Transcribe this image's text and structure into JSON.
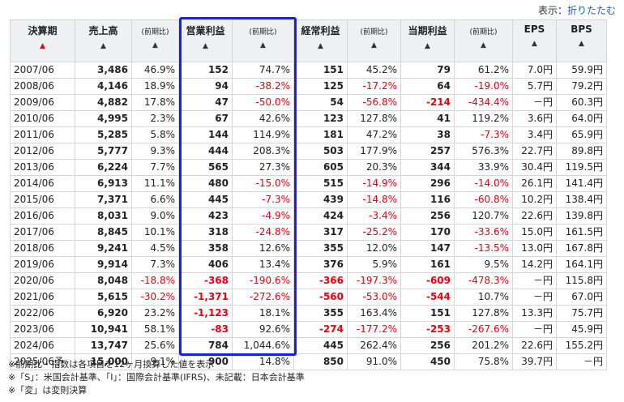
{
  "toolbar": {
    "display_label": "表示：",
    "toggle_link": "折りたたむ"
  },
  "headers": [
    {
      "label": "決算期",
      "arrow": "▲",
      "active": true
    },
    {
      "label": "売上高",
      "arrow": "▲"
    },
    {
      "label": "(前期比)",
      "arrow": "▲",
      "sub": true
    },
    {
      "label": "営業利益",
      "arrow": "▲"
    },
    {
      "label": "(前期比)",
      "arrow": "▲",
      "sub": true
    },
    {
      "label": "経常利益",
      "arrow": "▲"
    },
    {
      "label": "(前期比)",
      "arrow": "▲",
      "sub": true
    },
    {
      "label": "当期利益",
      "arrow": "▲"
    },
    {
      "label": "(前期比)",
      "arrow": "▲",
      "sub": true
    },
    {
      "label": "EPS",
      "arrow": "▲"
    },
    {
      "label": "BPS",
      "arrow": "▲"
    }
  ],
  "rows": [
    [
      "2007/06",
      "3,486",
      "46.9%",
      "152",
      "74.7%",
      "151",
      "45.2%",
      "79",
      "61.2%",
      "7.0円",
      "59.9円"
    ],
    [
      "2008/06",
      "4,146",
      "18.9%",
      "94",
      "-38.2%",
      "125",
      "-17.2%",
      "64",
      "-19.0%",
      "5.7円",
      "79.2円"
    ],
    [
      "2009/06",
      "4,882",
      "17.8%",
      "47",
      "-50.0%",
      "54",
      "-56.8%",
      "-214",
      "-434.4%",
      "－円",
      "60.3円"
    ],
    [
      "2010/06",
      "4,995",
      "2.3%",
      "67",
      "42.6%",
      "123",
      "127.8%",
      "41",
      "119.2%",
      "3.6円",
      "64.0円"
    ],
    [
      "2011/06",
      "5,285",
      "5.8%",
      "144",
      "114.9%",
      "181",
      "47.2%",
      "38",
      "-7.3%",
      "3.4円",
      "65.9円"
    ],
    [
      "2012/06",
      "5,777",
      "9.3%",
      "444",
      "208.3%",
      "503",
      "177.9%",
      "257",
      "576.3%",
      "22.7円",
      "89.8円"
    ],
    [
      "2013/06",
      "6,224",
      "7.7%",
      "565",
      "27.3%",
      "605",
      "20.3%",
      "344",
      "33.9%",
      "30.4円",
      "119.5円"
    ],
    [
      "2014/06",
      "6,913",
      "11.1%",
      "480",
      "-15.0%",
      "515",
      "-14.9%",
      "296",
      "-14.0%",
      "26.1円",
      "141.4円"
    ],
    [
      "2015/06",
      "7,371",
      "6.6%",
      "445",
      "-7.3%",
      "439",
      "-14.8%",
      "116",
      "-60.8%",
      "10.2円",
      "138.4円"
    ],
    [
      "2016/06",
      "8,031",
      "9.0%",
      "423",
      "-4.9%",
      "424",
      "-3.4%",
      "256",
      "120.7%",
      "22.6円",
      "139.8円"
    ],
    [
      "2017/06",
      "8,845",
      "10.1%",
      "318",
      "-24.8%",
      "317",
      "-25.2%",
      "170",
      "-33.6%",
      "15.0円",
      "161.5円"
    ],
    [
      "2018/06",
      "9,241",
      "4.5%",
      "358",
      "12.6%",
      "355",
      "12.0%",
      "147",
      "-13.5%",
      "13.0円",
      "167.8円"
    ],
    [
      "2019/06",
      "9,914",
      "7.3%",
      "406",
      "13.4%",
      "376",
      "5.9%",
      "161",
      "9.5%",
      "14.2円",
      "164.1円"
    ],
    [
      "2020/06",
      "8,048",
      "-18.8%",
      "-368",
      "-190.6%",
      "-366",
      "-197.3%",
      "-609",
      "-478.3%",
      "－円",
      "115.8円"
    ],
    [
      "2021/06",
      "5,615",
      "-30.2%",
      "-1,371",
      "-272.6%",
      "-560",
      "-53.0%",
      "-544",
      "10.7%",
      "－円",
      "67.0円"
    ],
    [
      "2022/06",
      "6,920",
      "23.2%",
      "-1,123",
      "18.1%",
      "355",
      "163.4%",
      "151",
      "127.8%",
      "13.3円",
      "75.7円"
    ],
    [
      "2023/06",
      "10,941",
      "58.1%",
      "-83",
      "92.6%",
      "-274",
      "-177.2%",
      "-253",
      "-267.6%",
      "－円",
      "45.9円"
    ],
    [
      "2024/06",
      "13,747",
      "25.6%",
      "784",
      "1,044.6%",
      "445",
      "262.4%",
      "256",
      "201.2%",
      "22.6円",
      "155.2円"
    ],
    [
      "2025/06予",
      "15,000",
      "9.1%",
      "900",
      "14.8%",
      "850",
      "91.0%",
      "450",
      "75.8%",
      "39.7円",
      "－円"
    ]
  ],
  "notes": [
    "※前期比・指数は各項目を12ヶ月換算した値を表示",
    "※「S」：米国会計基準、「I」：国際会計基準(IFRS)、未記載：日本会計基準",
    "※「変」は変則決算"
  ],
  "colors": {
    "negative": "#e60012",
    "highlight_border": "#1a1aff",
    "header_bg": "#eef0f4",
    "link": "#1a5fb4"
  }
}
